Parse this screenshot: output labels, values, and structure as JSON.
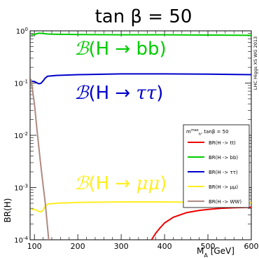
{
  "chart_data": {
    "type": "line",
    "title": "tan β = 50",
    "xlabel": "M_A [GeV]",
    "ylabel": "BR(H)",
    "xlim": [
      90,
      600
    ],
    "ylim_log10": [
      -4,
      0
    ],
    "y_scale": "log",
    "x_ticks": [
      100,
      200,
      300,
      400,
      500,
      600
    ],
    "y_ticks": [
      "10^-4",
      "10^-3",
      "10^-2",
      "10^-1",
      "10^0"
    ],
    "side_label": "LHC Higgs XS WG 2013",
    "legend": {
      "placement": "right-middle",
      "header": "m_h^max, tanβ = 50",
      "entries": [
        "BR(H -> tt)",
        "BR(H -> bb)",
        "BR(H -> ττ)",
        "BR(H -> μμ)",
        "BR(H -> WW)"
      ]
    },
    "annotations": [
      {
        "text": "B(H → bb)",
        "color": "#00cc00"
      },
      {
        "text": "B(H → ττ)",
        "color": "#0000cc"
      },
      {
        "text": "B(H → μμ)",
        "color": "#ffee22"
      }
    ],
    "series": [
      {
        "name": "BR(H -> tt)",
        "color": "#ee0000",
        "x": [
          370,
          380,
          390,
          400,
          420,
          450,
          480,
          500,
          530,
          560,
          600
        ],
        "y": [
          0.0001,
          0.000135,
          0.00017,
          0.00021,
          0.00027,
          0.00033,
          0.000365,
          0.00038,
          0.0004,
          0.00041,
          0.00042
        ]
      },
      {
        "name": "BR(H -> bb)",
        "color": "#00cc00",
        "x": [
          92,
          95,
          100,
          105,
          110,
          120,
          130,
          150,
          200,
          300,
          400,
          500,
          600
        ],
        "y": [
          0.84,
          0.84,
          0.85,
          0.88,
          0.9,
          0.89,
          0.87,
          0.86,
          0.85,
          0.84,
          0.84,
          0.83,
          0.82
        ]
      },
      {
        "name": "BR(H -> ττ)",
        "color": "#0000cc",
        "x": [
          92,
          95,
          100,
          103,
          110,
          115,
          120,
          125,
          130,
          150,
          200,
          300,
          400,
          500,
          600
        ],
        "y": [
          0.11,
          0.108,
          0.107,
          0.104,
          0.097,
          0.099,
          0.11,
          0.125,
          0.135,
          0.14,
          0.145,
          0.15,
          0.15,
          0.148,
          0.145
        ]
      },
      {
        "name": "BR(H -> μμ)",
        "color": "#ffee22",
        "x": [
          92,
          95,
          100,
          105,
          110,
          115,
          120,
          125,
          130,
          150,
          200,
          300,
          400,
          500,
          600
        ],
        "y": [
          0.00039,
          0.00038,
          0.00038,
          0.00037,
          0.00035,
          0.00034,
          0.00037,
          0.00044,
          0.00048,
          0.0005,
          0.00052,
          0.00053,
          0.00053,
          0.00052,
          0.00051
        ]
      },
      {
        "name": "BR(H -> WW)",
        "color": "#b08a82",
        "x": [
          92,
          100,
          105,
          110,
          115,
          120,
          125,
          130,
          133
        ],
        "y": [
          0.12,
          0.04,
          0.015,
          0.006,
          0.0025,
          0.0011,
          0.0005,
          0.00018,
          0.0001
        ]
      }
    ]
  }
}
